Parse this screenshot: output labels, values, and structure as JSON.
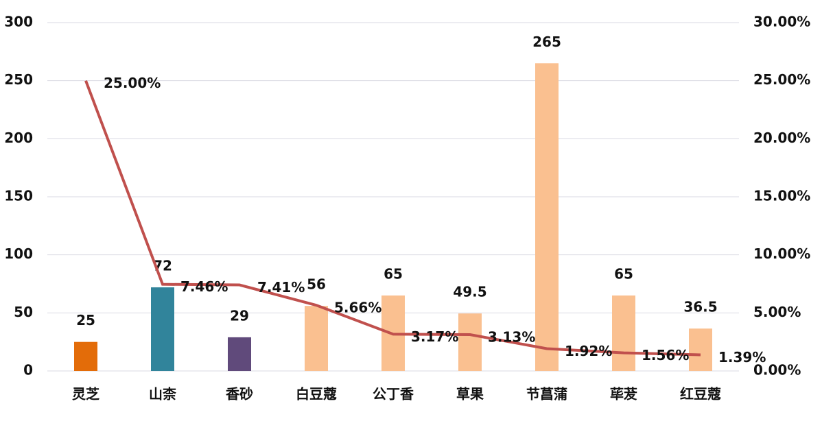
{
  "chart_data": {
    "type": "bar",
    "categories": [
      "灵芝",
      "山柰",
      "香砂",
      "白豆蔻",
      "公丁香",
      "草果",
      "节菖蒲",
      "荜茇",
      "红豆蔻"
    ],
    "series": [
      {
        "type": "bar",
        "colors": [
          "#e36c09",
          "#31849b",
          "#604a7b",
          "#fac090",
          "#fac090",
          "#fac090",
          "#fac090",
          "#fac090",
          "#fac090"
        ],
        "values": [
          25,
          72,
          29,
          56,
          65,
          49.5,
          265,
          65,
          36.5
        ]
      },
      {
        "type": "line",
        "axis": "y2",
        "color": "#c0504d",
        "values": [
          25,
          7.46,
          7.41,
          5.66,
          3.17,
          3.13,
          1.92,
          1.56,
          1.39
        ],
        "value_labels": [
          "25.00%",
          "7.46%",
          "7.41%",
          "5.66%",
          "3.17%",
          "3.13%",
          "1.92%",
          "1.56%",
          "1.39%"
        ]
      }
    ],
    "ylim": [
      0,
      300
    ],
    "yticks": [
      0,
      50,
      100,
      150,
      200,
      250,
      300
    ],
    "y2lim": [
      0,
      30
    ],
    "y2ticks": [
      {
        "value": 0,
        "label": "0.00%"
      },
      {
        "value": 5,
        "label": "5.00%"
      },
      {
        "value": 10,
        "label": "10.00%"
      },
      {
        "value": 15,
        "label": "15.00%"
      },
      {
        "value": 20,
        "label": "20.00%"
      },
      {
        "value": 25,
        "label": "25.00%"
      },
      {
        "value": 30,
        "label": "30.00%"
      }
    ],
    "grid": true
  }
}
